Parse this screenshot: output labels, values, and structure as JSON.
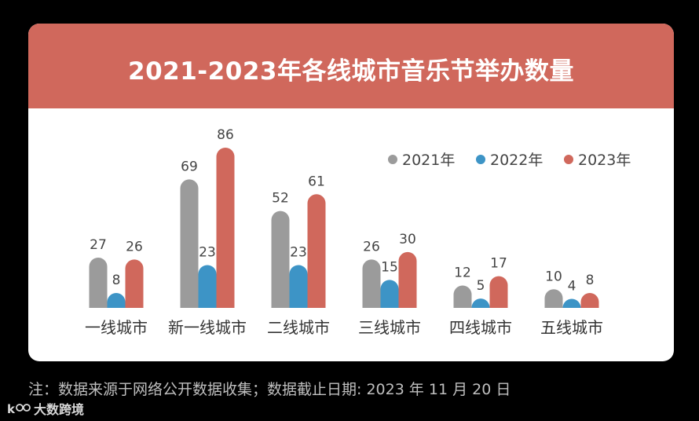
{
  "chart_data": {
    "type": "bar",
    "title": "2021-2023年各线城市音乐节举办数量",
    "categories": [
      "一线城市",
      "新一线城市",
      "二线城市",
      "三线城市",
      "四线城市",
      "五线城市"
    ],
    "series": [
      {
        "name": "2021年",
        "color": "#9b9b9b",
        "values": [
          27,
          69,
          52,
          26,
          12,
          10
        ]
      },
      {
        "name": "2022年",
        "color": "#3d94c6",
        "values": [
          8,
          23,
          23,
          15,
          5,
          4
        ]
      },
      {
        "name": "2023年",
        "color": "#d0685c",
        "values": [
          26,
          86,
          61,
          30,
          17,
          8
        ]
      }
    ],
    "xlabel": "",
    "ylabel": "",
    "ylim": [
      0,
      86
    ],
    "legend_position": "top-right",
    "grid": false
  },
  "footnote": "注：数据来源于网络公开数据收集；数据截止日期: 2023 年 11 月 20 日",
  "brand": {
    "name": "大数跨境"
  },
  "colors": {
    "header": "#d0685c",
    "background": "#000000",
    "card": "#ffffff"
  }
}
